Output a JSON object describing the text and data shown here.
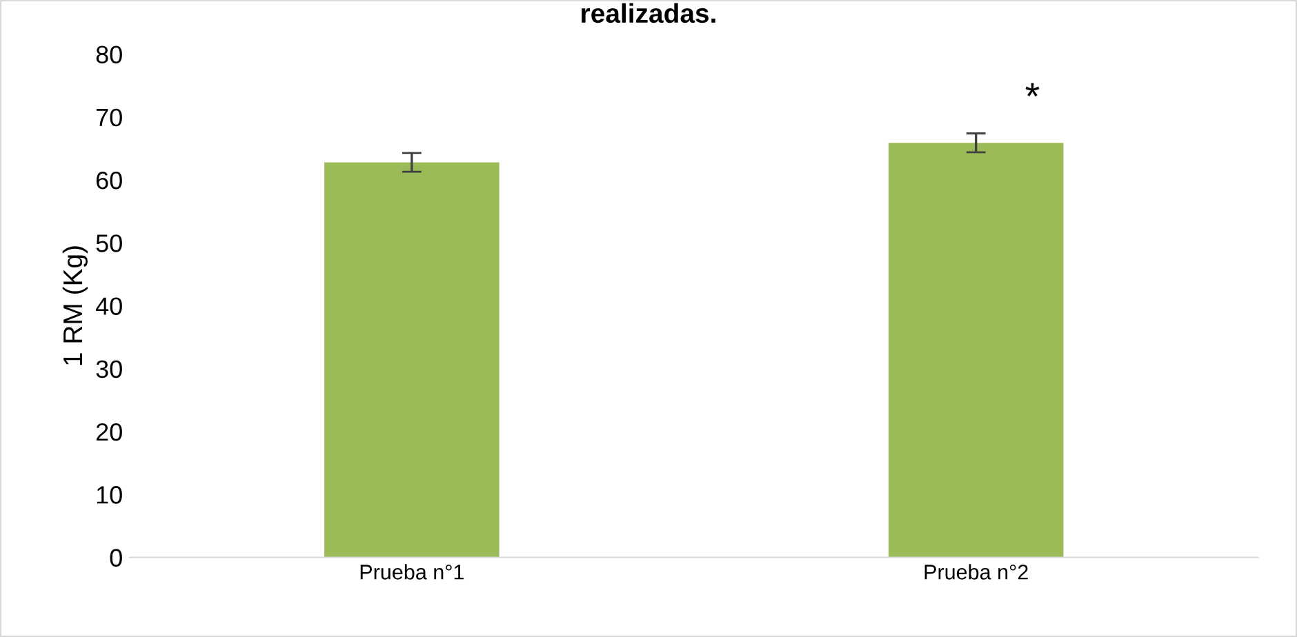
{
  "chart_data": {
    "type": "bar",
    "title": "realizadas.",
    "ylabel": "1 RM (Kg)",
    "categories": [
      "Prueba n°1",
      "Prueba n°2"
    ],
    "values": [
      62.8,
      65.9
    ],
    "errors": [
      1.5,
      1.5
    ],
    "color": "#9bbb59",
    "ylim": [
      0,
      80
    ],
    "yticks": [
      0,
      10,
      20,
      30,
      40,
      50,
      60,
      70,
      80
    ],
    "grid": false,
    "annotations": [
      "*"
    ]
  }
}
